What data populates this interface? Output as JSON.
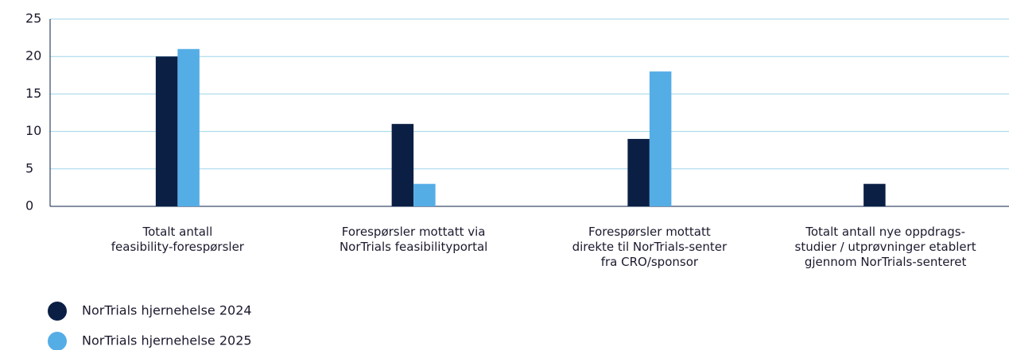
{
  "chart_data": {
    "type": "bar",
    "categories": [
      "Totalt antall\nfeasibility-forespørsler",
      "Forespørsler mottatt via\nNorTrials feasibilityportal",
      "Forespørsler mottatt\ndirekte til NorTrials-senter\nfra CRO/sponsor",
      "Totalt antall nye oppdrags-\nstudier / utprøvninger etablert\ngjennom NorTrials-senteret"
    ],
    "series": [
      {
        "name": "NorTrials hjernehelse 2024",
        "color": "#0b1f45",
        "values": [
          20,
          11,
          9,
          3
        ]
      },
      {
        "name": "NorTrials hjernehelse 2025",
        "color": "#55ade6",
        "values": [
          21,
          3,
          18,
          0
        ]
      }
    ],
    "ylim": [
      0,
      25
    ],
    "yticks": [
      0,
      5,
      10,
      15,
      20,
      25
    ],
    "grid": true,
    "legend": "bottom-left"
  }
}
